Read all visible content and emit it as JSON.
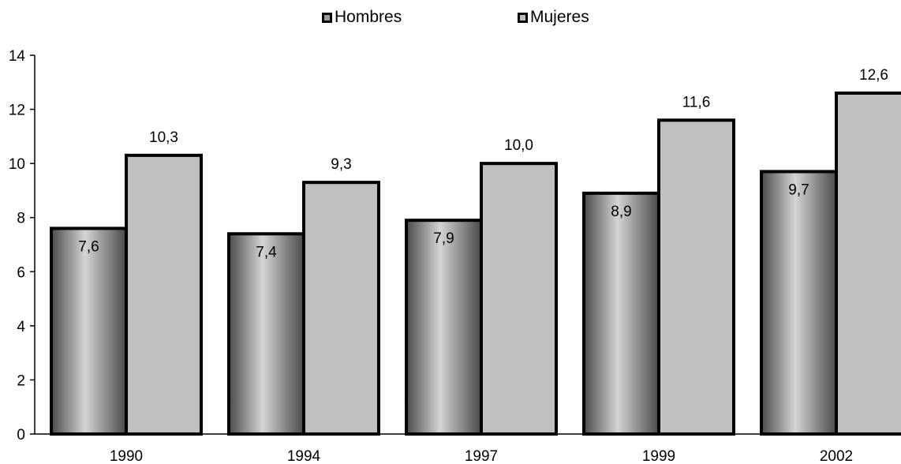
{
  "chart_data": {
    "type": "bar",
    "categories": [
      "1990",
      "1994",
      "1997",
      "1999",
      "2002"
    ],
    "series": [
      {
        "name": "Hombres",
        "values": [
          7.6,
          7.4,
          7.9,
          8.9,
          9.7
        ],
        "labels": [
          "7,6",
          "7,4",
          "7,9",
          "8,9",
          "9,7"
        ]
      },
      {
        "name": "Mujeres",
        "values": [
          10.3,
          9.3,
          10.0,
          11.6,
          12.6
        ],
        "labels": [
          "10,3",
          "9,3",
          "10,0",
          "11,6",
          "12,6"
        ]
      }
    ],
    "ylim": [
      0,
      14
    ],
    "yticks": [
      "0",
      "2",
      "4",
      "6",
      "8",
      "10",
      "12",
      "14"
    ],
    "legend_position": "top-center",
    "grid": false,
    "colors": {
      "hombres_fill": "gradient-gray",
      "mujeres": "#c0c0c0",
      "outline": "#000000"
    }
  }
}
